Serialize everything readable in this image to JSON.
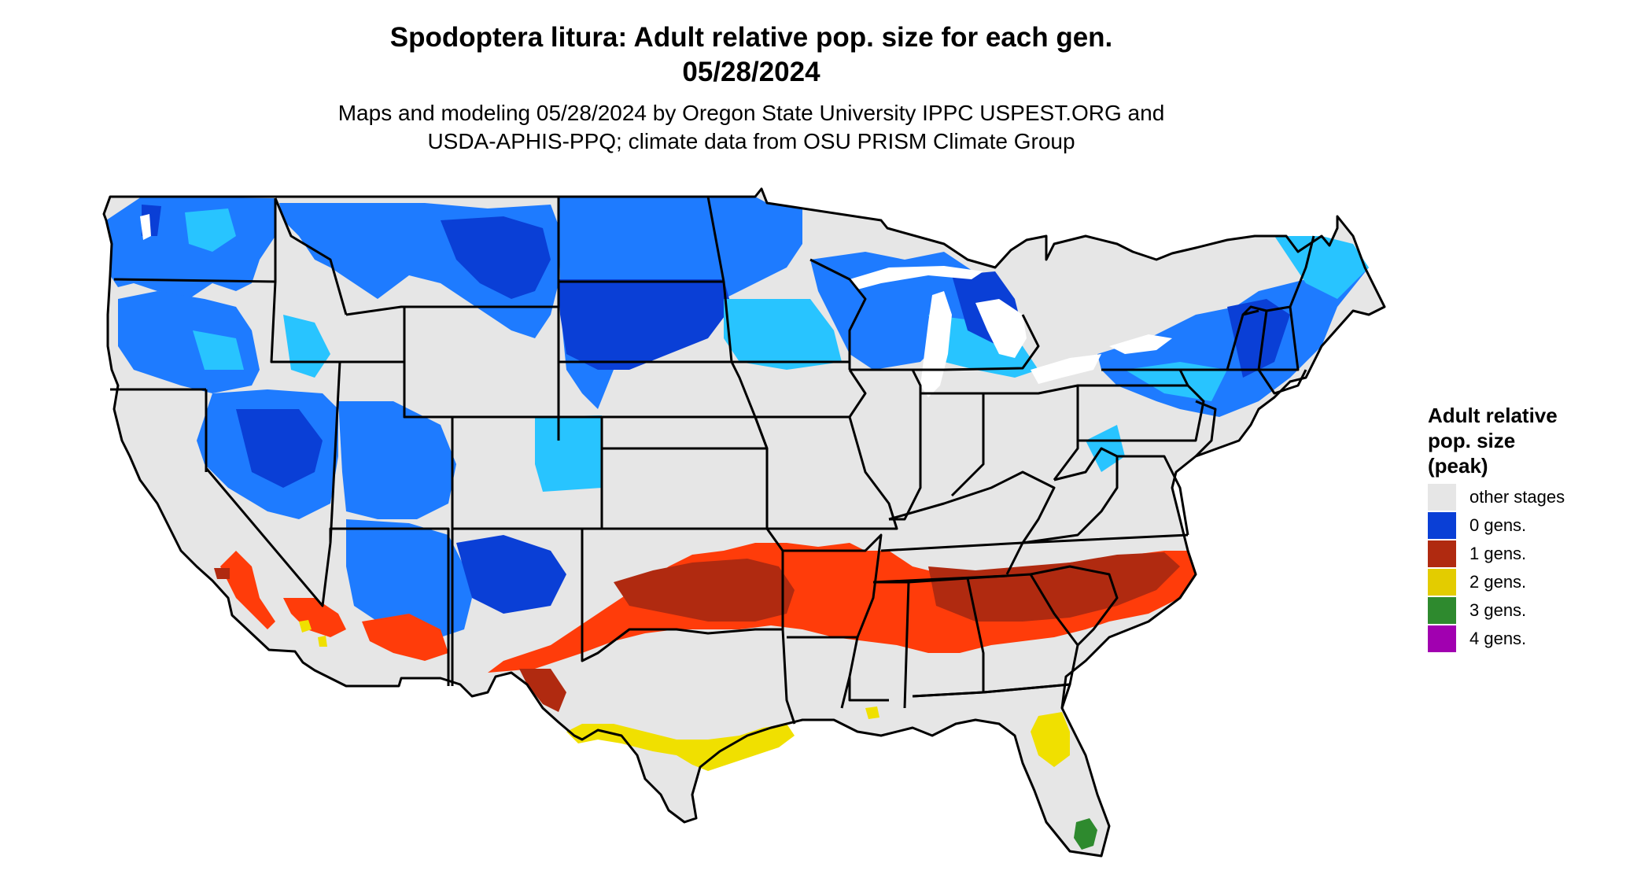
{
  "header": {
    "title_line1": "Spodoptera litura: Adult relative pop. size for each gen.",
    "title_line2": "05/28/2024",
    "subtitle_line1": "Maps and modeling 05/28/2024 by Oregon State University IPPC USPEST.ORG and",
    "subtitle_line2": "USDA-APHIS-PPQ; climate data from OSU PRISM Climate Group"
  },
  "legend": {
    "title_line1": "Adult relative",
    "title_line2": "pop. size",
    "title_line3": "(peak)",
    "items": [
      {
        "label": "other stages",
        "color": "#e6e6e6"
      },
      {
        "label": "0 gens.",
        "color": "#0a3fd6"
      },
      {
        "label": "1 gens.",
        "color": "#b02a10"
      },
      {
        "label": "2 gens.",
        "color": "#e3cc00"
      },
      {
        "label": "3 gens.",
        "color": "#2e8a2e"
      },
      {
        "label": "4 gens.",
        "color": "#a100b0"
      }
    ]
  },
  "map": {
    "colors": {
      "other_stages": "#e6e6e6",
      "zero_gens_dark": "#0a3fd6",
      "zero_gens_mid": "#1e7bff",
      "zero_gens_light": "#28c4ff",
      "one_gens_dark": "#b02a10",
      "one_gens_bright": "#ff3c0a",
      "two_gens": "#f0e000",
      "three_gens": "#2e8a2e",
      "border": "#000000",
      "water": "#ffffff"
    }
  }
}
